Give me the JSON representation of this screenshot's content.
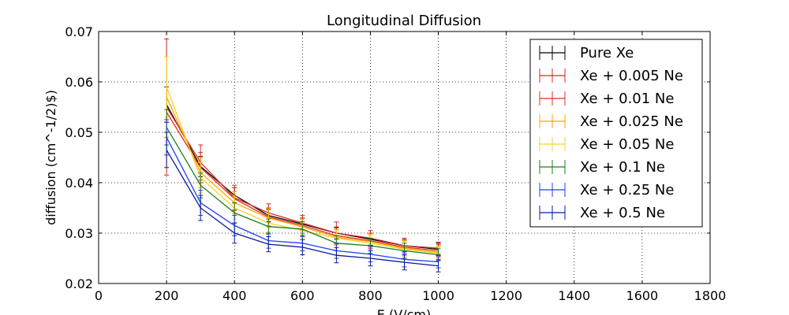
{
  "chart_data": {
    "type": "line",
    "title": "Longitudinal Diffusion",
    "xlabel": "E (V/cm)",
    "ylabel": "diffusion (cm^-1/2)$)",
    "xlim": [
      0,
      1800
    ],
    "ylim": [
      0.02,
      0.07
    ],
    "x_ticks": [
      "0",
      "200",
      "400",
      "600",
      "800",
      "1000",
      "1200",
      "1400",
      "1600",
      "1800"
    ],
    "y_ticks": [
      "0.02",
      "0.03",
      "0.04",
      "0.05",
      "0.06",
      "0.07"
    ],
    "grid": true,
    "legend_position": "top-right",
    "x": [
      200,
      300,
      400,
      500,
      600,
      700,
      800,
      900,
      1000
    ],
    "series": [
      {
        "name": "Pure Xe",
        "color": "#000000",
        "values": [
          0.0555,
          0.0432,
          0.0375,
          0.0335,
          0.0318,
          0.03,
          0.0288,
          0.0275,
          0.0268
        ],
        "errors": [
          0.0035,
          0.002,
          0.0015,
          0.0012,
          0.0012,
          0.0012,
          0.0012,
          0.0012,
          0.0012
        ]
      },
      {
        "name": "Xe + 0.005 Ne",
        "color": "#d62728",
        "values": [
          0.055,
          0.044,
          0.037,
          0.034,
          0.032,
          0.03,
          0.029,
          0.0275,
          0.027
        ],
        "errors": [
          0.0135,
          0.0035,
          0.0025,
          0.0018,
          0.0015,
          0.0022,
          0.0015,
          0.0015,
          0.0012
        ]
      },
      {
        "name": "Xe + 0.01 Ne",
        "color": "#e0301e",
        "values": [
          0.054,
          0.043,
          0.0368,
          0.0332,
          0.0315,
          0.0295,
          0.0285,
          0.0272,
          0.0265
        ],
        "errors": [
          0.005,
          0.003,
          0.0022,
          0.0018,
          0.0015,
          0.0015,
          0.0015,
          0.0015,
          0.0012
        ]
      },
      {
        "name": "Xe + 0.025 Ne",
        "color": "#ffa500",
        "values": [
          0.057,
          0.042,
          0.036,
          0.033,
          0.0312,
          0.0292,
          0.0283,
          0.027,
          0.0262
        ],
        "errors": [
          0.008,
          0.003,
          0.0022,
          0.0018,
          0.0015,
          0.0015,
          0.0015,
          0.0015,
          0.0012
        ]
      },
      {
        "name": "Xe + 0.05 Ne",
        "color": "#f5d327",
        "values": [
          0.059,
          0.041,
          0.035,
          0.032,
          0.0305,
          0.029,
          0.028,
          0.0268,
          0.026
        ],
        "errors": [
          0.006,
          0.003,
          0.0022,
          0.0018,
          0.0015,
          0.0015,
          0.0015,
          0.0015,
          0.0012
        ]
      },
      {
        "name": "Xe + 0.1 Ne",
        "color": "#1a7f1a",
        "values": [
          0.051,
          0.0395,
          0.034,
          0.0313,
          0.0308,
          0.028,
          0.0275,
          0.0265,
          0.0257
        ],
        "errors": [
          0.0035,
          0.0025,
          0.002,
          0.0015,
          0.0015,
          0.0015,
          0.0015,
          0.0015,
          0.0012
        ]
      },
      {
        "name": "Xe + 0.25 Ne",
        "color": "#1e3ff0",
        "values": [
          0.049,
          0.036,
          0.0315,
          0.0285,
          0.028,
          0.0265,
          0.0258,
          0.0248,
          0.0243
        ],
        "errors": [
          0.0035,
          0.0025,
          0.002,
          0.0015,
          0.0015,
          0.0015,
          0.0015,
          0.0015,
          0.0012
        ]
      },
      {
        "name": "Xe + 0.5 Ne",
        "color": "#0a1a9e",
        "values": [
          0.0465,
          0.035,
          0.03,
          0.0278,
          0.0272,
          0.0256,
          0.025,
          0.0242,
          0.0235
        ],
        "errors": [
          0.0035,
          0.0025,
          0.002,
          0.0015,
          0.0015,
          0.0015,
          0.0015,
          0.0015,
          0.0012
        ]
      }
    ]
  }
}
